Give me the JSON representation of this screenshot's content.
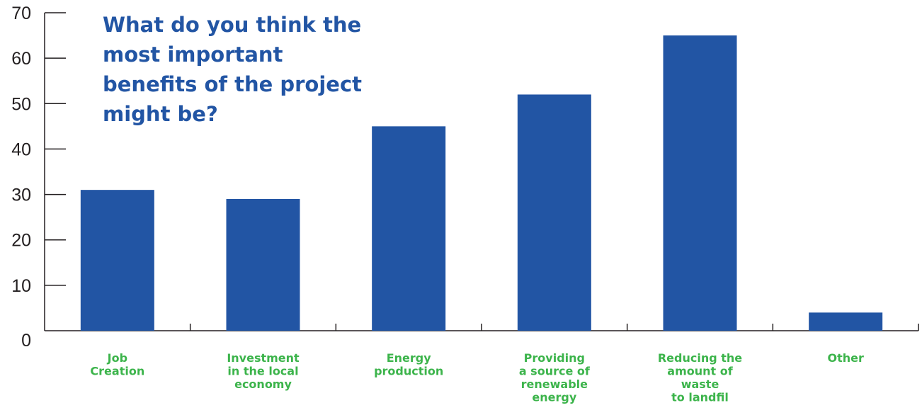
{
  "chart_data": {
    "type": "bar",
    "title_lines": [
      "What do you think the",
      "most important",
      "benefits of the project",
      "might be?"
    ],
    "categories": [
      [
        "Job",
        "Creation"
      ],
      [
        "Investment",
        "in the local",
        "economy"
      ],
      [
        "Energy",
        "production"
      ],
      [
        "Providing",
        "a source of",
        "renewable",
        "energy"
      ],
      [
        "Reducing the",
        "amount of",
        "waste",
        "to landfil"
      ],
      [
        "Other"
      ]
    ],
    "values": [
      31,
      29,
      45,
      52,
      65,
      4
    ],
    "ylim": [
      0,
      70
    ],
    "yticks": [
      "0",
      "10",
      "20",
      "30",
      "40",
      "50",
      "60",
      "70"
    ],
    "xlabel": "",
    "ylabel": "",
    "grid": false,
    "colors": {
      "bar": "#2255a4",
      "title": "#2255a4",
      "category_label": "#3cb44b",
      "axis": "#231f20"
    }
  }
}
